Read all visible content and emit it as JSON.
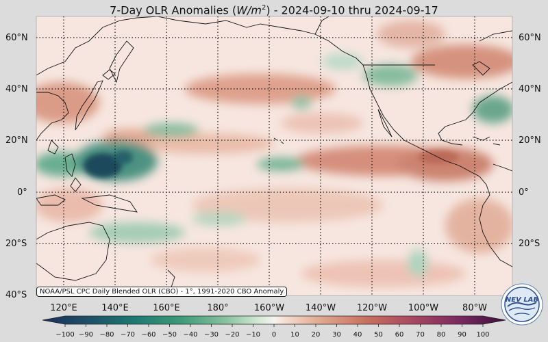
{
  "title": {
    "prefix": "7-Day OLR Anomalies (",
    "var": "W/m",
    "exp": "2",
    "suffix": ") - 2024-09-10 thru 2024-09-17"
  },
  "credit": "NOAA/PSL CPC Daily Blended OLR (CBO) - 1°, 1991-2020 CBO Anomaly",
  "lat_labels": [
    "60°N",
    "40°N",
    "20°N",
    "0°",
    "20°S",
    "40°S"
  ],
  "lon_labels": [
    "120°E",
    "140°E",
    "160°E",
    "180°",
    "160°W",
    "140°W",
    "120°W",
    "100°W",
    "80°W"
  ],
  "colorbar": {
    "ticks": [
      "−100",
      "−90",
      "−80",
      "−70",
      "−60",
      "−50",
      "−40",
      "−30",
      "−20",
      "−10",
      "0",
      "10",
      "20",
      "30",
      "40",
      "50",
      "60",
      "70",
      "80",
      "90",
      "100"
    ],
    "range": [
      -100,
      100
    ],
    "low_color": "#1a2f5a",
    "mid_color": "#f7f3ef",
    "high_color": "#3a0f3a"
  },
  "logo": {
    "text": "NEV LAB",
    "icon": "globe-logo-icon"
  },
  "colors": {
    "positive": "#d2826a",
    "negative": "#4a9a78",
    "strong_negative": "#1f5a5a",
    "background": "#dcdcdc"
  }
}
